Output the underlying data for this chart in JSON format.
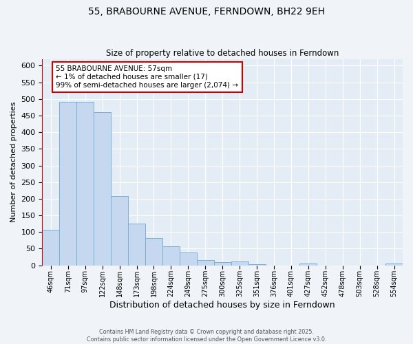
{
  "title": "55, BRABOURNE AVENUE, FERNDOWN, BH22 9EH",
  "subtitle": "Size of property relative to detached houses in Ferndown",
  "xlabel": "Distribution of detached houses by size in Ferndown",
  "ylabel": "Number of detached properties",
  "categories": [
    "46sqm",
    "71sqm",
    "97sqm",
    "122sqm",
    "148sqm",
    "173sqm",
    "198sqm",
    "224sqm",
    "249sqm",
    "275sqm",
    "300sqm",
    "325sqm",
    "351sqm",
    "376sqm",
    "401sqm",
    "427sqm",
    "452sqm",
    "478sqm",
    "503sqm",
    "528sqm",
    "554sqm"
  ],
  "values": [
    107,
    492,
    492,
    460,
    208,
    125,
    83,
    58,
    38,
    15,
    10,
    12,
    3,
    0,
    0,
    5,
    0,
    0,
    0,
    0,
    5
  ],
  "bar_color": "#c5d8f0",
  "bar_edge_color": "#7bafd4",
  "background_color": "#f0f4f8",
  "plot_bg_color": "#e4ecf5",
  "annotation_box_text_line1": "55 BRABOURNE AVENUE: 57sqm",
  "annotation_box_text_line2": "← 1% of detached houses are smaller (17)",
  "annotation_box_text_line3": "99% of semi-detached houses are larger (2,074) →",
  "annotation_box_color": "#cc0000",
  "property_line_color": "#cc0000",
  "ylim": [
    0,
    620
  ],
  "yticks": [
    0,
    50,
    100,
    150,
    200,
    250,
    300,
    350,
    400,
    450,
    500,
    550,
    600
  ],
  "footer_line1": "Contains HM Land Registry data © Crown copyright and database right 2025.",
  "footer_line2": "Contains public sector information licensed under the Open Government Licence v3.0."
}
